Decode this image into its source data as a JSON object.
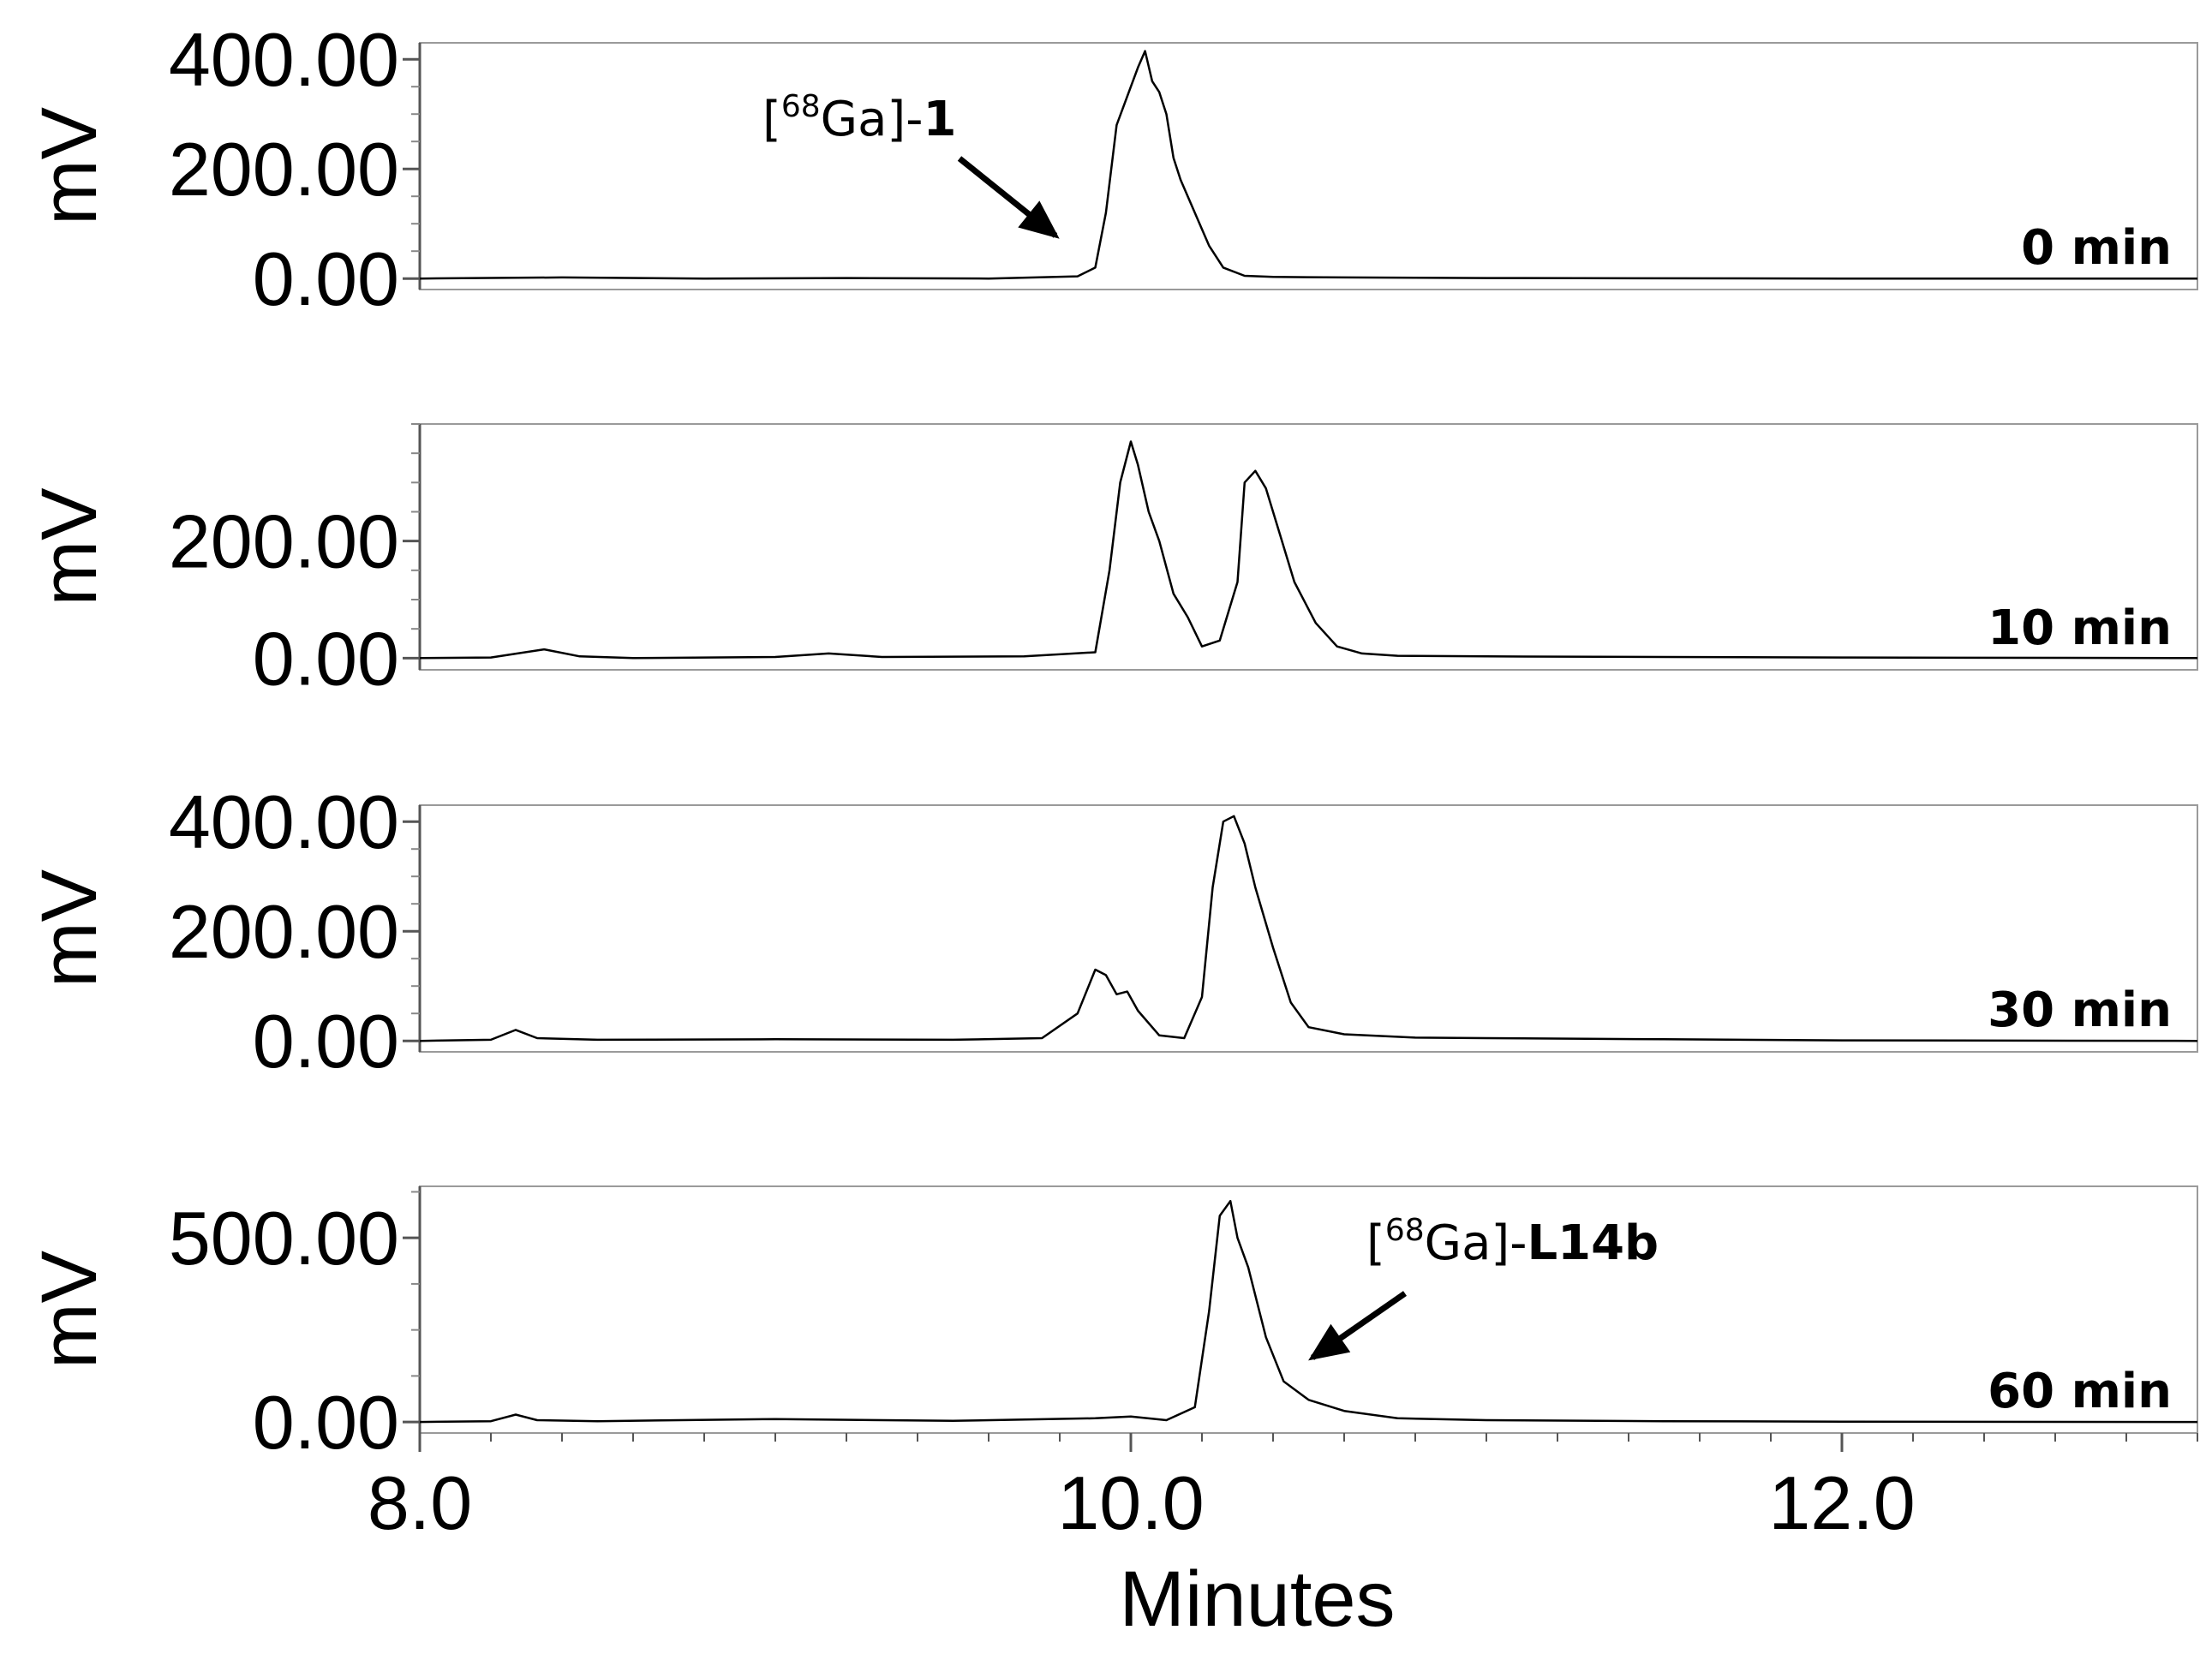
{
  "chart_data": {
    "type": "line",
    "xlabel": "Minutes",
    "xlim": [
      8.0,
      13.0
    ],
    "xticks": [
      8.0,
      10.0,
      12.0
    ],
    "xtick_labels": [
      "8.0",
      "10.0",
      "12.0"
    ],
    "panels": [
      {
        "label": "0 min",
        "ylabel": "mV",
        "ylim": [
          -20,
          430
        ],
        "yticks": [
          0,
          200,
          400
        ],
        "ytick_labels": [
          "0.00",
          "200.00",
          "400.00"
        ],
        "annotation": {
          "prefix": "[",
          "sup": "68",
          "mid": "Ga]-",
          "bold": "1"
        },
        "series": [
          {
            "x": [
              8.0,
              8.4,
              8.8,
              9.2,
              9.6,
              9.85,
              9.9,
              9.93,
              9.96,
              10.0,
              10.02,
              10.04,
              10.06,
              10.08,
              10.1,
              10.12,
              10.14,
              10.18,
              10.22,
              10.26,
              10.32,
              10.4,
              10.6,
              11.0,
              12.0,
              13.0
            ],
            "y": [
              0,
              2,
              0,
              1,
              0,
              4,
              20,
              120,
              280,
              350,
              385,
              415,
              360,
              340,
              300,
              220,
              180,
              120,
              60,
              20,
              5,
              3,
              2,
              1,
              0,
              0
            ]
          }
        ]
      },
      {
        "label": "10 min",
        "ylabel": "mV",
        "ylim": [
          -20,
          400
        ],
        "yticks": [
          0,
          200
        ],
        "ytick_labels": [
          "0.00",
          "200.00"
        ],
        "series": [
          {
            "x": [
              8.0,
              8.2,
              8.35,
              8.45,
              8.6,
              9.0,
              9.15,
              9.3,
              9.7,
              9.9,
              9.94,
              9.97,
              10.0,
              10.02,
              10.05,
              10.08,
              10.12,
              10.16,
              10.2,
              10.25,
              10.3,
              10.32,
              10.35,
              10.38,
              10.42,
              10.46,
              10.52,
              10.58,
              10.65,
              10.75,
              11.0,
              11.5,
              12.0,
              13.0
            ],
            "y": [
              0,
              1,
              15,
              3,
              0,
              2,
              8,
              2,
              3,
              10,
              150,
              300,
              370,
              330,
              250,
              200,
              110,
              70,
              20,
              30,
              130,
              300,
              320,
              290,
              210,
              130,
              60,
              20,
              8,
              4,
              3,
              2,
              1,
              0
            ]
          }
        ]
      },
      {
        "label": "30 min",
        "ylabel": "mV",
        "ylim": [
          -20,
          430
        ],
        "yticks": [
          0,
          200,
          400
        ],
        "ytick_labels": [
          "0.00",
          "200.00",
          "400.00"
        ],
        "series": [
          {
            "x": [
              8.0,
              8.2,
              8.27,
              8.33,
              8.5,
              9.0,
              9.5,
              9.75,
              9.85,
              9.9,
              9.93,
              9.96,
              9.99,
              10.02,
              10.08,
              10.15,
              10.2,
              10.23,
              10.26,
              10.29,
              10.32,
              10.35,
              10.4,
              10.45,
              10.5,
              10.6,
              10.8,
              11.0,
              11.5,
              12.0,
              13.0
            ],
            "y": [
              0,
              2,
              20,
              5,
              2,
              3,
              2,
              5,
              50,
              130,
              120,
              85,
              90,
              55,
              10,
              5,
              80,
              280,
              400,
              410,
              360,
              280,
              170,
              70,
              25,
              12,
              6,
              5,
              3,
              1,
              0
            ]
          }
        ]
      },
      {
        "label": "60 min",
        "ylabel": "mV",
        "ylim": [
          -30,
          640
        ],
        "yticks": [
          0,
          500
        ],
        "ytick_labels": [
          "0.00",
          "500.00"
        ],
        "annotation": {
          "prefix": "[",
          "sup": "68",
          "mid": "Ga]-",
          "bold": "L14b"
        },
        "series": [
          {
            "x": [
              8.0,
              8.2,
              8.27,
              8.33,
              8.5,
              9.0,
              9.5,
              9.9,
              10.0,
              10.1,
              10.18,
              10.22,
              10.25,
              10.28,
              10.3,
              10.33,
              10.38,
              10.43,
              10.5,
              10.6,
              10.75,
              11.0,
              11.5,
              12.0,
              13.0
            ],
            "y": [
              0,
              2,
              20,
              5,
              2,
              8,
              3,
              10,
              15,
              5,
              40,
              300,
              560,
              600,
              500,
              420,
              230,
              110,
              60,
              30,
              10,
              5,
              2,
              1,
              0
            ]
          }
        ]
      }
    ]
  }
}
